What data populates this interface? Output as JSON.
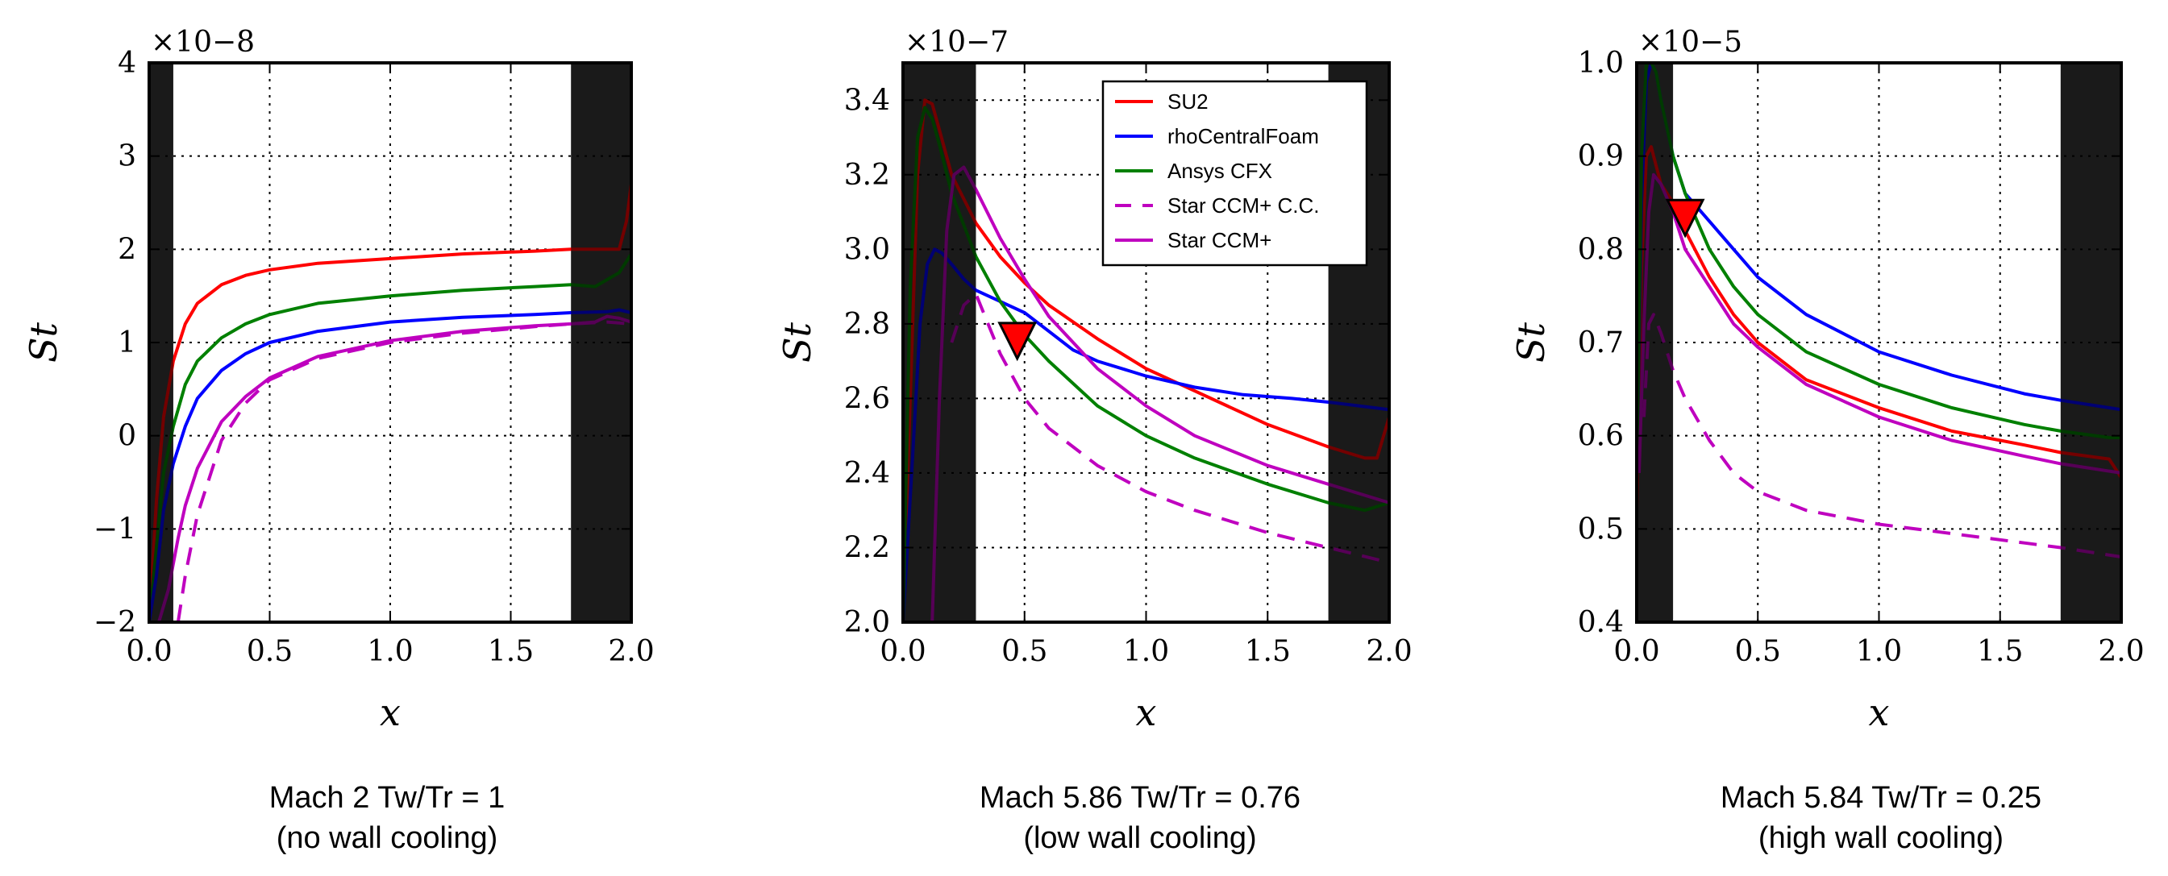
{
  "colors": {
    "SU2": "#ff0000",
    "rhoCentralFoam": "#0000ff",
    "Ansys CFX": "#008000",
    "Star CCM+ C.C.": "#bf00bf",
    "Star CCM+": "#bf00bf",
    "shade": "#3a3a3a",
    "marker": "#ff0000"
  },
  "legend": {
    "entries": [
      {
        "label": "SU2",
        "style": "solid",
        "color": "#ff0000"
      },
      {
        "label": "rhoCentralFoam",
        "style": "solid",
        "color": "#0000ff"
      },
      {
        "label": "Ansys CFX",
        "style": "solid",
        "color": "#008000"
      },
      {
        "label": "Star CCM+ C.C.",
        "style": "dashed",
        "color": "#bf00bf"
      },
      {
        "label": "Star CCM+",
        "style": "solid",
        "color": "#bf00bf"
      }
    ],
    "placement": "top-right of middle panel"
  },
  "chart_data": [
    {
      "type": "line",
      "xlabel": "x",
      "ylabel": "St",
      "offset_text": "×10−8",
      "xlim": [
        0,
        2.0
      ],
      "ylim": [
        -2,
        4
      ],
      "xticks": [
        "0.0",
        "0.5",
        "1.0",
        "1.5",
        "2.0"
      ],
      "yticks": [
        "−2",
        "−1",
        "0",
        "1",
        "2",
        "3",
        "4"
      ],
      "ytick_values": [
        -2,
        -1,
        0,
        1,
        2,
        3,
        4
      ],
      "grid": true,
      "shaded_regions": [
        [
          0,
          0.1
        ],
        [
          1.75,
          2.0
        ]
      ],
      "caption": [
        "Mach 2 Tw/Tr = 1",
        "(no wall cooling)"
      ],
      "series": [
        {
          "name": "SU2",
          "style": "solid",
          "x": [
            0.0,
            0.03,
            0.06,
            0.1,
            0.15,
            0.2,
            0.3,
            0.4,
            0.5,
            0.7,
            1.0,
            1.3,
            1.6,
            1.75,
            1.95,
            1.98,
            2.0
          ],
          "y": [
            -2.0,
            -0.7,
            0.2,
            0.8,
            1.2,
            1.42,
            1.62,
            1.72,
            1.78,
            1.85,
            1.9,
            1.95,
            1.98,
            2.0,
            2.0,
            2.3,
            2.7
          ]
        },
        {
          "name": "Ansys CFX",
          "style": "solid",
          "x": [
            0.0,
            0.03,
            0.06,
            0.1,
            0.15,
            0.2,
            0.3,
            0.4,
            0.5,
            0.7,
            1.0,
            1.3,
            1.6,
            1.75,
            1.85,
            1.95,
            2.0
          ],
          "y": [
            -2.0,
            -1.2,
            -0.4,
            0.1,
            0.55,
            0.8,
            1.05,
            1.2,
            1.3,
            1.42,
            1.5,
            1.56,
            1.6,
            1.62,
            1.6,
            1.75,
            1.95
          ]
        },
        {
          "name": "rhoCentralFoam",
          "style": "solid",
          "x": [
            0.0,
            0.03,
            0.06,
            0.1,
            0.15,
            0.2,
            0.3,
            0.4,
            0.5,
            0.7,
            1.0,
            1.3,
            1.6,
            1.75,
            1.9,
            1.95,
            2.0
          ],
          "y": [
            -2.0,
            -1.5,
            -0.8,
            -0.3,
            0.1,
            0.4,
            0.7,
            0.88,
            1.0,
            1.12,
            1.22,
            1.27,
            1.3,
            1.32,
            1.33,
            1.35,
            1.32
          ]
        },
        {
          "name": "Star CCM+",
          "style": "solid",
          "x": [
            0.04,
            0.08,
            0.12,
            0.15,
            0.2,
            0.3,
            0.4,
            0.5,
            0.7,
            1.0,
            1.3,
            1.6,
            1.75,
            1.85,
            1.9,
            1.95,
            2.0
          ],
          "y": [
            -2.0,
            -1.65,
            -1.1,
            -0.75,
            -0.35,
            0.15,
            0.42,
            0.62,
            0.85,
            1.02,
            1.12,
            1.18,
            1.2,
            1.22,
            1.28,
            1.26,
            1.22
          ]
        },
        {
          "name": "Star CCM+ C.C.",
          "style": "dashed",
          "x": [
            0.12,
            0.15,
            0.2,
            0.3,
            0.4,
            0.5,
            0.7,
            1.0,
            1.3,
            1.6,
            1.75,
            1.9,
            2.0
          ],
          "y": [
            -2.0,
            -1.5,
            -0.85,
            -0.05,
            0.35,
            0.6,
            0.83,
            1.0,
            1.1,
            1.17,
            1.2,
            1.22,
            1.2
          ]
        }
      ]
    },
    {
      "type": "line",
      "xlabel": "x",
      "ylabel": "St",
      "offset_text": "×10−7",
      "xlim": [
        0,
        2.0
      ],
      "ylim": [
        2.0,
        3.5
      ],
      "xticks": [
        "0.0",
        "0.5",
        "1.0",
        "1.5",
        "2.0"
      ],
      "yticks": [
        "2.0",
        "2.2",
        "2.4",
        "2.6",
        "2.8",
        "3.0",
        "3.2",
        "3.4"
      ],
      "ytick_values": [
        2.0,
        2.2,
        2.4,
        2.6,
        2.8,
        3.0,
        3.2,
        3.4
      ],
      "grid": true,
      "shaded_regions": [
        [
          0,
          0.3
        ],
        [
          1.75,
          2.0
        ]
      ],
      "marker": {
        "x": 0.47,
        "y": 2.72
      },
      "caption": [
        "Mach 5.86 Tw/Tr = 0.76",
        "(low wall cooling)"
      ],
      "series": [
        {
          "name": "SU2",
          "style": "solid",
          "x": [
            0.0,
            0.03,
            0.06,
            0.09,
            0.12,
            0.15,
            0.2,
            0.3,
            0.4,
            0.5,
            0.6,
            0.8,
            1.0,
            1.2,
            1.5,
            1.75,
            1.9,
            1.95,
            2.0
          ],
          "y": [
            2.0,
            2.6,
            3.2,
            3.4,
            3.39,
            3.32,
            3.2,
            3.07,
            2.98,
            2.91,
            2.85,
            2.76,
            2.68,
            2.62,
            2.53,
            2.47,
            2.44,
            2.44,
            2.55
          ]
        },
        {
          "name": "rhoCentralFoam",
          "style": "solid",
          "x": [
            0.0,
            0.04,
            0.07,
            0.1,
            0.13,
            0.16,
            0.2,
            0.25,
            0.3,
            0.4,
            0.5,
            0.6,
            0.7,
            0.8,
            1.0,
            1.2,
            1.4,
            1.6,
            1.75,
            2.0
          ],
          "y": [
            2.0,
            2.45,
            2.8,
            2.96,
            3.0,
            2.99,
            2.96,
            2.92,
            2.89,
            2.86,
            2.83,
            2.78,
            2.73,
            2.7,
            2.66,
            2.63,
            2.61,
            2.6,
            2.59,
            2.57
          ]
        },
        {
          "name": "Ansys CFX",
          "style": "solid",
          "x": [
            0.0,
            0.03,
            0.06,
            0.09,
            0.12,
            0.15,
            0.2,
            0.3,
            0.4,
            0.5,
            0.6,
            0.8,
            1.0,
            1.2,
            1.5,
            1.75,
            1.9,
            2.0
          ],
          "y": [
            2.0,
            2.9,
            3.3,
            3.38,
            3.35,
            3.28,
            3.15,
            2.98,
            2.86,
            2.77,
            2.7,
            2.58,
            2.5,
            2.44,
            2.37,
            2.32,
            2.3,
            2.32
          ]
        },
        {
          "name": "Star CCM+",
          "style": "solid",
          "x": [
            0.12,
            0.15,
            0.18,
            0.21,
            0.25,
            0.3,
            0.4,
            0.5,
            0.6,
            0.8,
            1.0,
            1.2,
            1.5,
            1.75,
            2.0
          ],
          "y": [
            2.0,
            2.6,
            3.05,
            3.2,
            3.22,
            3.16,
            3.03,
            2.92,
            2.82,
            2.68,
            2.58,
            2.5,
            2.42,
            2.37,
            2.32
          ]
        },
        {
          "name": "Star CCM+ C.C.",
          "style": "dashed",
          "x": [
            0.2,
            0.25,
            0.3,
            0.35,
            0.4,
            0.5,
            0.6,
            0.8,
            1.0,
            1.2,
            1.5,
            1.75,
            2.0
          ],
          "y": [
            2.75,
            2.85,
            2.88,
            2.8,
            2.72,
            2.6,
            2.52,
            2.42,
            2.35,
            2.3,
            2.24,
            2.2,
            2.16
          ]
        }
      ]
    },
    {
      "type": "line",
      "xlabel": "x",
      "ylabel": "St",
      "offset_text": "×10−5",
      "xlim": [
        0,
        2.0
      ],
      "ylim": [
        0.4,
        1.0
      ],
      "xticks": [
        "0.0",
        "0.5",
        "1.0",
        "1.5",
        "2.0"
      ],
      "yticks": [
        "0.4",
        "0.5",
        "0.6",
        "0.7",
        "0.8",
        "0.9",
        "1.0"
      ],
      "ytick_values": [
        0.4,
        0.5,
        0.6,
        0.7,
        0.8,
        0.9,
        1.0
      ],
      "grid": true,
      "shaded_regions": [
        [
          0,
          0.15
        ],
        [
          1.75,
          2.0
        ]
      ],
      "marker": {
        "x": 0.2,
        "y": 0.82
      },
      "caption": [
        "Mach 5.84 Tw/Tr = 0.25",
        "(high wall cooling)"
      ],
      "series": [
        {
          "name": "SU2",
          "style": "solid",
          "x": [
            0.0,
            0.02,
            0.04,
            0.06,
            0.08,
            0.1,
            0.15,
            0.2,
            0.3,
            0.4,
            0.5,
            0.7,
            1.0,
            1.3,
            1.6,
            1.75,
            1.95,
            2.0
          ],
          "y": [
            0.52,
            0.78,
            0.9,
            0.91,
            0.89,
            0.87,
            0.85,
            0.82,
            0.77,
            0.73,
            0.7,
            0.66,
            0.63,
            0.605,
            0.59,
            0.582,
            0.575,
            0.555
          ]
        },
        {
          "name": "rhoCentralFoam",
          "style": "solid",
          "x": [
            0.0,
            0.02,
            0.04,
            0.06,
            0.08,
            0.1,
            0.15,
            0.2,
            0.3,
            0.4,
            0.5,
            0.7,
            1.0,
            1.3,
            1.6,
            1.75,
            2.0
          ],
          "y": [
            0.55,
            0.85,
            0.98,
            1.0,
            0.99,
            0.96,
            0.9,
            0.86,
            0.83,
            0.8,
            0.77,
            0.73,
            0.69,
            0.665,
            0.645,
            0.638,
            0.628
          ]
        },
        {
          "name": "Ansys CFX",
          "style": "solid",
          "x": [
            0.0,
            0.02,
            0.04,
            0.06,
            0.08,
            0.1,
            0.15,
            0.2,
            0.3,
            0.4,
            0.5,
            0.7,
            1.0,
            1.3,
            1.6,
            1.75,
            1.95,
            2.0
          ],
          "y": [
            0.55,
            0.9,
            1.0,
            1.0,
            0.99,
            0.96,
            0.9,
            0.86,
            0.8,
            0.76,
            0.73,
            0.69,
            0.655,
            0.63,
            0.612,
            0.605,
            0.598,
            0.598
          ]
        },
        {
          "name": "Star CCM+",
          "style": "solid",
          "x": [
            0.01,
            0.03,
            0.05,
            0.07,
            0.1,
            0.15,
            0.2,
            0.3,
            0.4,
            0.5,
            0.7,
            1.0,
            1.3,
            1.6,
            1.75,
            2.0
          ],
          "y": [
            0.56,
            0.72,
            0.84,
            0.88,
            0.87,
            0.84,
            0.8,
            0.76,
            0.72,
            0.695,
            0.655,
            0.62,
            0.595,
            0.578,
            0.57,
            0.56
          ]
        },
        {
          "name": "Star CCM+ C.C.",
          "style": "dashed",
          "x": [
            0.03,
            0.05,
            0.07,
            0.1,
            0.15,
            0.2,
            0.3,
            0.4,
            0.5,
            0.7,
            1.0,
            1.3,
            1.6,
            1.75,
            2.0
          ],
          "y": [
            0.62,
            0.72,
            0.73,
            0.71,
            0.67,
            0.64,
            0.595,
            0.56,
            0.54,
            0.52,
            0.505,
            0.495,
            0.485,
            0.48,
            0.47
          ]
        }
      ]
    }
  ]
}
